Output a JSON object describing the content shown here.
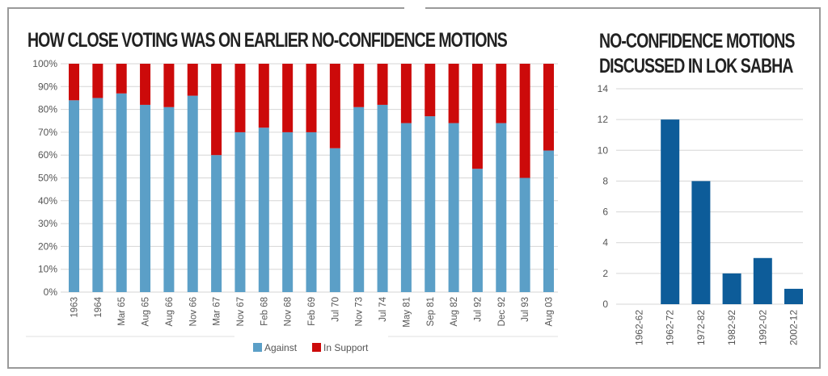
{
  "colors": {
    "against": "#5b9fc7",
    "in_support": "#cc0a0a",
    "right_bar": "#0d5c99",
    "grid": "#d6d6d6",
    "frame": "#9a9a9a",
    "text": "#555555"
  },
  "chart_data": [
    {
      "type": "bar",
      "stacked": true,
      "title": "HOW CLOSE VOTING WAS ON EARLIER NO-CONFIDENCE MOTIONS",
      "xlabel": "",
      "ylabel": "",
      "ylim": [
        0,
        100
      ],
      "y_ticks": [
        "0%",
        "10%",
        "20%",
        "30%",
        "40%",
        "50%",
        "60%",
        "70%",
        "80%",
        "90%",
        "100%"
      ],
      "grid": true,
      "legend_position": "bottom-center",
      "categories": [
        "1963",
        "1964",
        "Mar 65",
        "Aug 65",
        "Aug 66",
        "Nov 66",
        "Mar 67",
        "Nov 67",
        "Feb 68",
        "Nov 68",
        "Feb 69",
        "Jul 70",
        "Nov 73",
        "Jul 74",
        "May 81",
        "Sep 81",
        "Aug 82",
        "Jul 92",
        "Dec 92",
        "Jul 93",
        "Aug 03"
      ],
      "series": [
        {
          "name": "Against",
          "values": [
            84,
            85,
            87,
            82,
            81,
            86,
            60,
            70,
            72,
            70,
            70,
            63,
            81,
            82,
            74,
            77,
            74,
            54,
            74,
            50,
            62
          ]
        },
        {
          "name": "In Support",
          "values": [
            16,
            15,
            13,
            18,
            19,
            14,
            40,
            30,
            28,
            30,
            30,
            37,
            19,
            18,
            26,
            23,
            26,
            46,
            26,
            50,
            38
          ]
        }
      ]
    },
    {
      "type": "bar",
      "title": "NO-CONFIDENCE MOTIONS DISCUSSED IN LOK SABHA",
      "title_lines": [
        "NO-CONFIDENCE MOTIONS",
        "DISCUSSED IN LOK SABHA"
      ],
      "xlabel": "",
      "ylabel": "",
      "ylim": [
        0,
        14
      ],
      "y_ticks": [
        "0",
        "2",
        "4",
        "6",
        "8",
        "10",
        "12",
        "14"
      ],
      "grid": true,
      "categories": [
        "1962-62",
        "1962-72",
        "1972-82",
        "1982-92",
        "1992-02",
        "2002-12"
      ],
      "values": [
        0,
        12,
        8,
        2,
        3,
        1
      ]
    }
  ]
}
